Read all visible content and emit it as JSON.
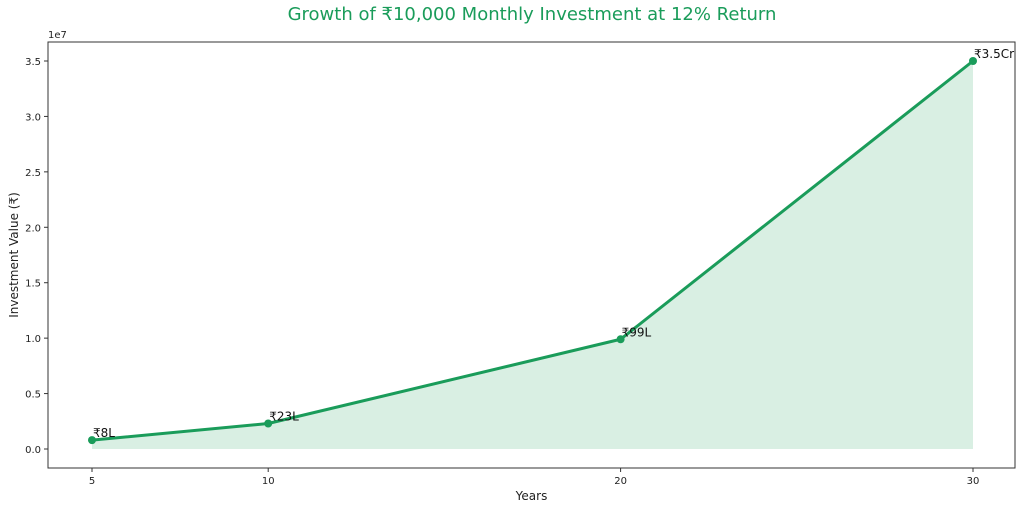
{
  "chart_data": {
    "type": "line",
    "title": "Growth of ₹10,000 Monthly Investment at 12% Return",
    "xlabel": "Years",
    "ylabel": "Investment Value (₹)",
    "y_offset_label": "1e7",
    "x": [
      5,
      10,
      20,
      30
    ],
    "series": [
      {
        "name": "Investment Value",
        "values": [
          800000,
          2300000,
          9900000,
          35000000
        ],
        "color": "#1a9c5a",
        "fill": "#d9efe3"
      }
    ],
    "annotations": [
      "₹8L",
      "₹23L",
      "₹99L",
      "₹3.5Cr"
    ],
    "x_ticks": [
      5,
      10,
      20,
      30
    ],
    "y_ticks": [
      0.0,
      0.5,
      1.0,
      1.5,
      2.0,
      2.5,
      3.0,
      3.5
    ],
    "y_tick_labels": [
      "0.0",
      "0.5",
      "1.0",
      "1.5",
      "2.0",
      "2.5",
      "3.0",
      "3.5"
    ],
    "ylim": [
      -1750000,
      36750000
    ],
    "xlim": [
      3.75,
      31.25
    ],
    "grid": false,
    "legend": "none"
  }
}
